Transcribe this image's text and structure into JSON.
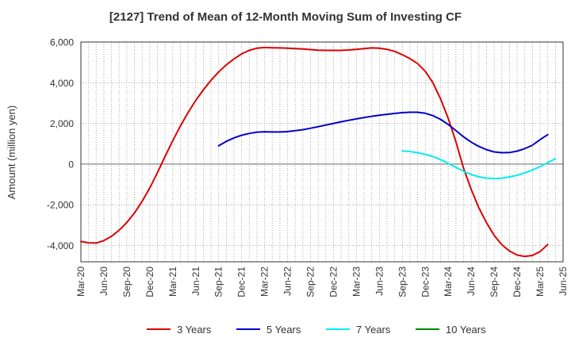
{
  "chart_data": {
    "type": "line",
    "title": "[2127]  Trend of Mean of 12-Month Moving Sum of Investing CF",
    "xlabel": "",
    "ylabel": "Amount (million yen)",
    "ylim": [
      -4800,
      6000
    ],
    "yticks": [
      -4000,
      -2000,
      0,
      2000,
      4000,
      6000
    ],
    "ytick_labels": [
      "-4,000",
      "-2,000",
      "0",
      "2,000",
      "4,000",
      "6,000"
    ],
    "xticks": [
      "Mar-20",
      "Jun-20",
      "Sep-20",
      "Dec-20",
      "Mar-21",
      "Jun-21",
      "Sep-21",
      "Dec-21",
      "Mar-22",
      "Jun-22",
      "Sep-22",
      "Dec-22",
      "Mar-23",
      "Jun-23",
      "Sep-23",
      "Dec-23",
      "Mar-24",
      "Jun-24",
      "Sep-24",
      "Dec-24",
      "Mar-25",
      "Jun-25"
    ],
    "grid": true,
    "legend_position": "bottom",
    "series": [
      {
        "name": "3 Years",
        "color": "#dd0000",
        "start_index": 0,
        "values": [
          -3800,
          -3870,
          -3880,
          -3760,
          -3550,
          -3250,
          -2870,
          -2400,
          -1830,
          -1170,
          -420,
          380,
          1150,
          1880,
          2530,
          3130,
          3650,
          4120,
          4530,
          4880,
          5170,
          5420,
          5590,
          5700,
          5730,
          5720,
          5710,
          5700,
          5680,
          5660,
          5630,
          5600,
          5590,
          5590,
          5590,
          5610,
          5640,
          5680,
          5710,
          5700,
          5640,
          5540,
          5380,
          5180,
          4940,
          4560,
          4000,
          3200,
          2250,
          1100,
          -200,
          -1250,
          -2150,
          -2880,
          -3500,
          -3960,
          -4270,
          -4470,
          -4540,
          -4490,
          -4300,
          -3950
        ]
      },
      {
        "name": "5 Years",
        "color": "#0000cc",
        "start_index": 18,
        "values": [
          900,
          1120,
          1290,
          1420,
          1510,
          1570,
          1590,
          1580,
          1580,
          1600,
          1640,
          1690,
          1760,
          1840,
          1920,
          2000,
          2080,
          2150,
          2220,
          2290,
          2350,
          2400,
          2450,
          2490,
          2530,
          2550,
          2550,
          2500,
          2380,
          2200,
          1950,
          1650,
          1340,
          1080,
          870,
          710,
          600,
          560,
          570,
          640,
          760,
          930,
          1200,
          1450
        ]
      },
      {
        "name": "7 Years",
        "color": "#00eeee",
        "start_index": 42,
        "values": [
          650,
          620,
          560,
          480,
          370,
          220,
          40,
          -160,
          -350,
          -510,
          -620,
          -690,
          -710,
          -690,
          -630,
          -550,
          -430,
          -290,
          -120,
          70,
          260
        ]
      },
      {
        "name": "10 Years",
        "color": "#008800",
        "start_index": 0,
        "values": []
      }
    ]
  }
}
